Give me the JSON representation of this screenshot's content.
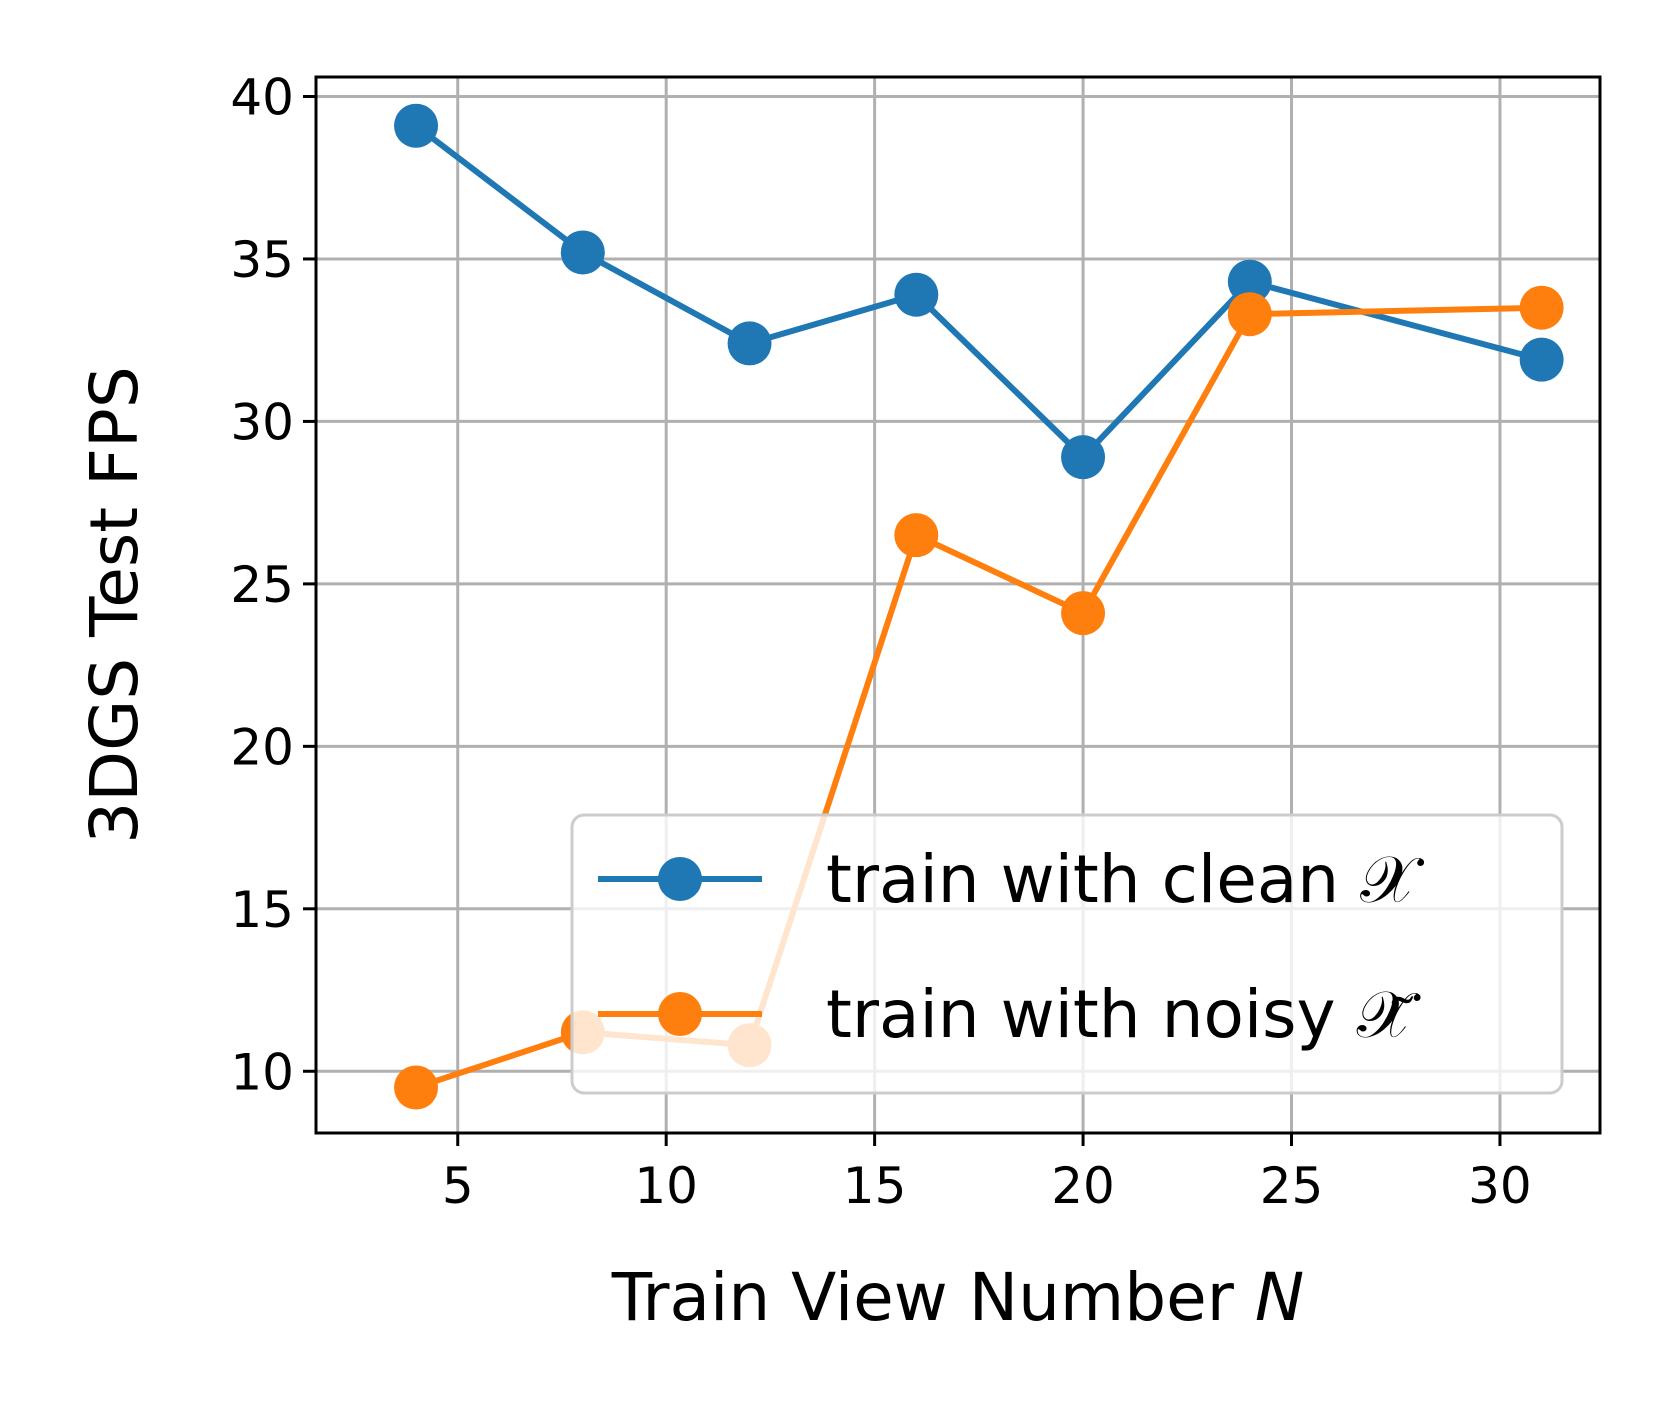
{
  "chart_data": {
    "type": "line",
    "xlabel": "Train View Number",
    "xlabel_var": "N",
    "ylabel": "3DGS Test FPS",
    "xlim": [
      1.6,
      32.4
    ],
    "ylim": [
      8.1,
      40.6
    ],
    "x_ticks": [
      5,
      10,
      15,
      20,
      25,
      30
    ],
    "y_ticks": [
      10,
      15,
      20,
      25,
      30,
      35,
      40
    ],
    "grid": true,
    "legend_position": "lower-right",
    "series": [
      {
        "name": "train with clean 𝒳",
        "color": "#1f77b4",
        "marker": "circle",
        "x": [
          4,
          8,
          12,
          16,
          20,
          24,
          31
        ],
        "y": [
          39.1,
          35.2,
          32.4,
          33.9,
          28.9,
          34.3,
          31.9
        ]
      },
      {
        "name": "train with noisy 𝒳̃",
        "color": "#ff7f0e",
        "marker": "circle",
        "x": [
          4,
          8,
          12,
          16,
          20,
          24,
          31
        ],
        "y": [
          9.5,
          11.2,
          10.8,
          26.5,
          24.1,
          33.3,
          33.5
        ]
      }
    ]
  }
}
